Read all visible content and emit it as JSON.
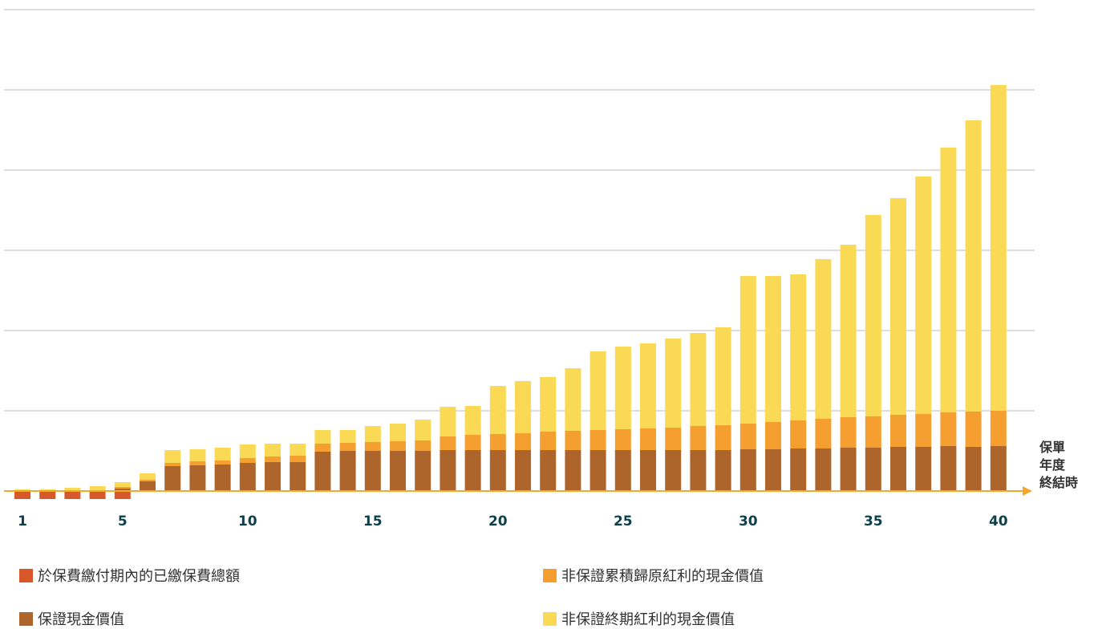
{
  "chart_data": {
    "type": "bar",
    "stacked": true,
    "x": [
      1,
      2,
      3,
      4,
      5,
      6,
      7,
      8,
      9,
      10,
      11,
      12,
      13,
      14,
      15,
      16,
      17,
      18,
      19,
      20,
      21,
      22,
      23,
      24,
      25,
      26,
      27,
      28,
      29,
      30,
      31,
      32,
      33,
      34,
      35,
      36,
      37,
      38,
      39,
      40
    ],
    "xticks": [
      "1",
      "5",
      "10",
      "15",
      "20",
      "25",
      "30",
      "35",
      "40"
    ],
    "xlabel": "保單年度終結時",
    "xlabel_lines": [
      "保單",
      "年度",
      "終結時"
    ],
    "ylim": [
      -0.2,
      6
    ],
    "grid": true,
    "legend_position": "bottom",
    "series": [
      {
        "name": "於保費繳付期內的已繳保費總額",
        "color": "#d9582b",
        "values": [
          -0.1,
          -0.1,
          -0.1,
          -0.1,
          -0.1,
          0,
          0,
          0,
          0,
          0,
          0,
          0,
          0,
          0,
          0,
          0,
          0,
          0,
          0,
          0,
          0,
          0,
          0,
          0,
          0,
          0,
          0,
          0,
          0,
          0,
          0,
          0,
          0,
          0,
          0,
          0,
          0,
          0,
          0,
          0
        ]
      },
      {
        "name": "保證現金價值",
        "color": "#ad652b",
        "values": [
          0,
          0,
          0,
          0,
          0.03,
          0.12,
          0.31,
          0.32,
          0.33,
          0.35,
          0.36,
          0.36,
          0.49,
          0.5,
          0.5,
          0.5,
          0.5,
          0.51,
          0.51,
          0.51,
          0.51,
          0.51,
          0.51,
          0.51,
          0.51,
          0.51,
          0.51,
          0.51,
          0.51,
          0.52,
          0.52,
          0.53,
          0.53,
          0.54,
          0.54,
          0.55,
          0.55,
          0.56,
          0.55,
          0.56
        ]
      },
      {
        "name": "非保證累積歸原紅利的現金價值",
        "color": "#f59f31",
        "values": [
          0,
          0,
          0,
          0,
          0.02,
          0.02,
          0.04,
          0.05,
          0.05,
          0.06,
          0.07,
          0.08,
          0.1,
          0.1,
          0.11,
          0.12,
          0.13,
          0.17,
          0.19,
          0.2,
          0.21,
          0.23,
          0.24,
          0.25,
          0.26,
          0.27,
          0.28,
          0.3,
          0.31,
          0.32,
          0.34,
          0.35,
          0.37,
          0.38,
          0.39,
          0.4,
          0.41,
          0.42,
          0.44,
          0.44
        ]
      },
      {
        "name": "非保證終期紅利的現金價值",
        "color": "#fad955",
        "values": [
          0.02,
          0.02,
          0.04,
          0.06,
          0.06,
          0.08,
          0.16,
          0.15,
          0.16,
          0.17,
          0.16,
          0.15,
          0.17,
          0.16,
          0.2,
          0.22,
          0.26,
          0.37,
          0.36,
          0.6,
          0.65,
          0.68,
          0.78,
          0.98,
          1.03,
          1.06,
          1.11,
          1.16,
          1.22,
          1.84,
          1.82,
          1.82,
          1.99,
          2.15,
          2.51,
          2.7,
          2.96,
          3.3,
          3.63,
          4.06
        ]
      }
    ]
  }
}
